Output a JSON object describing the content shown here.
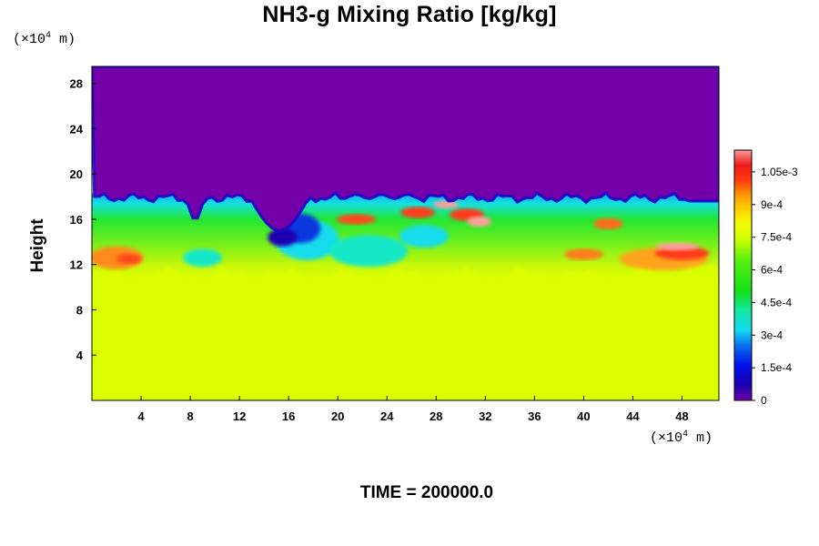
{
  "chart_data": {
    "type": "heatmap",
    "title": "NH3-g Mixing Ratio [kg/kg]",
    "xlabel": "",
    "ylabel": "Height",
    "x_unit": "(×10⁴ m)",
    "y_unit": "(×10⁴ m)",
    "x_unit_base": "(×10",
    "x_unit_exp": "4",
    "x_unit_tail": " m)",
    "xlim": [
      0,
      51
    ],
    "ylim": [
      0,
      29.5
    ],
    "xticks": [
      "4",
      "8",
      "12",
      "16",
      "20",
      "24",
      "28",
      "32",
      "36",
      "40",
      "44",
      "48"
    ],
    "xtick_values": [
      4,
      8,
      12,
      16,
      20,
      24,
      28,
      32,
      36,
      40,
      44,
      48
    ],
    "yticks": [
      "4",
      "8",
      "12",
      "16",
      "20",
      "24",
      "28"
    ],
    "ytick_values": [
      4,
      8,
      12,
      16,
      20,
      24,
      28
    ],
    "colorbar": {
      "range": [
        0,
        0.00115
      ],
      "tick_labels": [
        "0",
        "1.5e-4",
        "3e-4",
        "4.5e-4",
        "6e-4",
        "7.5e-4",
        "9e-4",
        "1.05e-3"
      ],
      "tick_values": [
        0,
        0.00015,
        0.0003,
        0.00045,
        0.0006,
        0.00075,
        0.0009,
        0.00105
      ]
    },
    "field_regions": [
      {
        "description": "upper layer",
        "height_range": [
          18,
          29.5
        ],
        "value": 0.0
      },
      {
        "description": "lower layer",
        "height_range": [
          0,
          11
        ],
        "value": 0.00078
      },
      {
        "description": "mixed turbulent band",
        "height_range": [
          10.5,
          18.5
        ],
        "value_range": [
          5e-05,
          0.00115
        ]
      }
    ],
    "colors": {
      "zero": "#7300a8",
      "low": "#0a0ad8",
      "mid_low": "#16d8ec",
      "mid": "#16e21a",
      "mid_high": "#dcff00",
      "high": "#ff3a1a",
      "max": "#ff9e9e"
    }
  },
  "footer": {
    "time_label": "TIME = 200000.0"
  }
}
